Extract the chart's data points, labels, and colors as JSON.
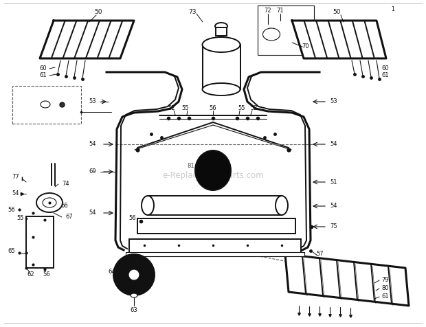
{
  "bg_color": "#ffffff",
  "fg_color": "#111111",
  "watermark": "e-ReplacementParts.com",
  "watermark_color": "#cccccc",
  "lw_thick": 2.2,
  "lw_med": 1.4,
  "lw_thin": 0.8,
  "lw_vt": 0.5
}
